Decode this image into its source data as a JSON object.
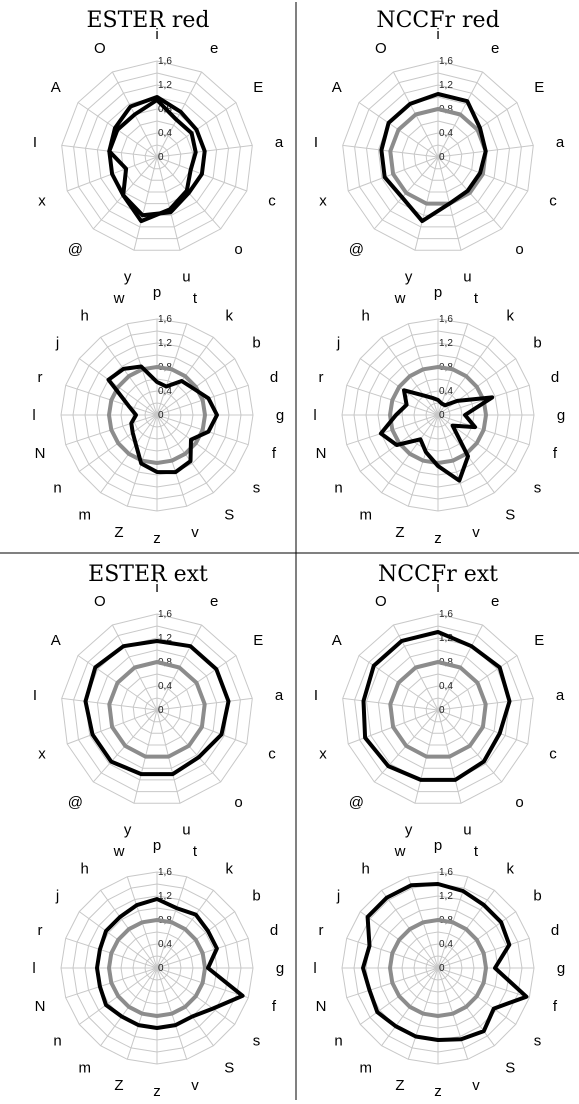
{
  "chart_data": [
    {
      "type": "radar",
      "title": "ESTER red",
      "charts": [
        {
          "categories": [
            "i",
            "e",
            "E",
            "a",
            "c",
            "o",
            "u",
            "y",
            "@",
            "x",
            "I",
            "A",
            "O"
          ],
          "ticks": [
            "0",
            "0,4",
            "0,8",
            "1,2",
            "1,6"
          ],
          "rlim": [
            0,
            1.6
          ],
          "series": [
            {
              "values": [
                1.0,
                0.85,
                0.8,
                0.8,
                0.8,
                0.8,
                0.95,
                1.0,
                0.85,
                0.8,
                0.8,
                0.85,
                0.95
              ]
            },
            {
              "values": [
                0.95,
                0.7,
                0.7,
                0.65,
                0.6,
                0.75,
                0.9,
                1.1,
                0.85,
                0.55,
                0.8,
                0.8,
                0.8
              ]
            }
          ]
        },
        {
          "categories": [
            "p",
            "t",
            "k",
            "b",
            "d",
            "g",
            "f",
            "s",
            "S",
            "v",
            "z",
            "Z",
            "m",
            "n",
            "N",
            "l",
            "r",
            "j",
            "h",
            "w"
          ],
          "ticks": [
            "0",
            "0,4",
            "0,8",
            "1,2",
            "1,6"
          ],
          "rlim": [
            0,
            1.6
          ],
          "series": [
            {
              "values": [
                0.8,
                0.8,
                0.8,
                0.8,
                0.8,
                0.8,
                0.8,
                0.8,
                0.8,
                0.8,
                0.8,
                0.8,
                0.8,
                0.8,
                0.8,
                0.8,
                0.8,
                0.8,
                0.8,
                0.8
              ]
            },
            {
              "values": [
                0.55,
                0.5,
                0.7,
                0.75,
                0.9,
                1.0,
                0.9,
                0.7,
                0.95,
                1.0,
                0.95,
                0.85,
                0.6,
                0.5,
                0.45,
                0.35,
                0.5,
                1.0,
                0.95,
                0.85
              ]
            }
          ]
        }
      ]
    },
    {
      "type": "radar",
      "title": "NCCFr red",
      "charts": [
        {
          "categories": [
            "i",
            "e",
            "E",
            "a",
            "c",
            "o",
            "u",
            "y",
            "@",
            "x",
            "I",
            "A",
            "O"
          ],
          "ticks": [
            "0",
            "0,4",
            "0,8",
            "1,2",
            "1,6"
          ],
          "rlim": [
            0,
            1.6
          ],
          "series": [
            {
              "values": [
                0.8,
                0.8,
                0.8,
                0.8,
                0.8,
                0.8,
                0.8,
                0.8,
                0.8,
                0.8,
                0.8,
                0.8,
                0.8
              ]
            },
            {
              "values": [
                1.05,
                1.05,
                0.85,
                0.8,
                0.75,
                0.75,
                0.8,
                1.1,
                0.9,
                0.95,
                0.95,
                1.0,
                1.0
              ]
            }
          ]
        },
        {
          "categories": [
            "p",
            "t",
            "k",
            "b",
            "d",
            "g",
            "f",
            "s",
            "S",
            "v",
            "z",
            "Z",
            "m",
            "n",
            "N",
            "l",
            "r",
            "j",
            "h",
            "w"
          ],
          "ticks": [
            "0",
            "0,4",
            "0,8",
            "1,2",
            "1,6"
          ],
          "rlim": [
            0,
            1.6
          ],
          "series": [
            {
              "values": [
                0.8,
                0.8,
                0.8,
                0.8,
                0.8,
                0.8,
                0.8,
                0.8,
                0.8,
                0.8,
                0.8,
                0.8,
                0.8,
                0.8,
                0.8,
                0.8,
                0.8,
                0.8,
                0.8,
                0.8
              ]
            },
            {
              "values": [
                0.25,
                0.2,
                0.2,
                0.4,
                0.95,
                0.45,
                0.65,
                0.3,
                0.85,
                1.15,
                0.85,
                0.65,
                0.5,
                0.85,
                1.0,
                0.7,
                0.55,
                0.7,
                0.4,
                0.3
              ]
            }
          ]
        }
      ]
    },
    {
      "type": "radar",
      "title": "ESTER ext",
      "charts": [
        {
          "categories": [
            "i",
            "e",
            "E",
            "a",
            "c",
            "o",
            "u",
            "y",
            "@",
            "x",
            "I",
            "A",
            "O"
          ],
          "ticks": [
            "0",
            "0,4",
            "0,8",
            "1,2",
            "1,6"
          ],
          "rlim": [
            0,
            1.6
          ],
          "series": [
            {
              "values": [
                0.8,
                0.8,
                0.8,
                0.8,
                0.8,
                0.8,
                0.8,
                0.8,
                0.8,
                0.8,
                0.8,
                0.8,
                0.8
              ]
            },
            {
              "values": [
                1.15,
                1.2,
                1.2,
                1.2,
                1.15,
                1.05,
                1.1,
                1.1,
                1.15,
                1.15,
                1.2,
                1.25,
                1.2
              ]
            }
          ]
        },
        {
          "categories": [
            "p",
            "t",
            "k",
            "b",
            "d",
            "g",
            "f",
            "s",
            "S",
            "v",
            "z",
            "Z",
            "m",
            "n",
            "N",
            "l",
            "r",
            "j",
            "h",
            "w"
          ],
          "ticks": [
            "0",
            "0,4",
            "0,8",
            "1,2",
            "1,6"
          ],
          "rlim": [
            0,
            1.6
          ],
          "series": [
            {
              "values": [
                0.8,
                0.8,
                0.8,
                0.8,
                0.8,
                0.8,
                0.8,
                0.8,
                0.8,
                0.8,
                0.8,
                0.8,
                0.8,
                0.8,
                0.8,
                0.8,
                0.8,
                0.8,
                0.8,
                0.8
              ]
            },
            {
              "values": [
                1.15,
                1.05,
                1.1,
                1.05,
                1.05,
                0.85,
                1.5,
                1.15,
                1.0,
                1.0,
                1.0,
                1.0,
                1.0,
                1.05,
                1.0,
                1.0,
                1.0,
                1.05,
                1.05,
                1.1
              ]
            }
          ]
        }
      ]
    },
    {
      "type": "radar",
      "title": "NCCFr ext",
      "charts": [
        {
          "categories": [
            "i",
            "e",
            "E",
            "a",
            "c",
            "o",
            "u",
            "y",
            "@",
            "x",
            "I",
            "A",
            "O"
          ],
          "ticks": [
            "0",
            "0,4",
            "0,8",
            "1,2",
            "1,6"
          ],
          "rlim": [
            0,
            1.6
          ],
          "series": [
            {
              "values": [
                0.8,
                0.8,
                0.8,
                0.8,
                0.8,
                0.8,
                0.8,
                0.8,
                0.8,
                0.8,
                0.8,
                0.8,
                0.8
              ]
            },
            {
              "values": [
                1.3,
                1.2,
                1.25,
                1.2,
                1.1,
                1.15,
                1.2,
                1.2,
                1.25,
                1.3,
                1.25,
                1.3,
                1.3
              ]
            }
          ]
        },
        {
          "categories": [
            "p",
            "t",
            "k",
            "b",
            "d",
            "g",
            "f",
            "s",
            "S",
            "v",
            "z",
            "Z",
            "m",
            "n",
            "N",
            "l",
            "r",
            "j",
            "h",
            "w"
          ],
          "ticks": [
            "0",
            "0,4",
            "0,8",
            "1,2",
            "1,6"
          ],
          "rlim": [
            0,
            1.6
          ],
          "series": [
            {
              "values": [
                1.4,
                1.35,
                1.3,
                1.3,
                1.25,
                0.95,
                1.55,
                1.15,
                1.3,
                1.25,
                1.2,
                1.2,
                1.2,
                1.25,
                1.2,
                1.25,
                1.2,
                1.45,
                1.45,
                1.45
              ]
            },
            {
              "values": [
                0.8,
                0.8,
                0.8,
                0.8,
                0.8,
                0.8,
                0.8,
                0.8,
                0.8,
                0.8,
                0.8,
                0.8,
                0.8,
                0.8,
                0.8,
                0.8,
                0.8,
                0.8,
                0.8,
                0.8
              ]
            }
          ]
        }
      ]
    }
  ]
}
